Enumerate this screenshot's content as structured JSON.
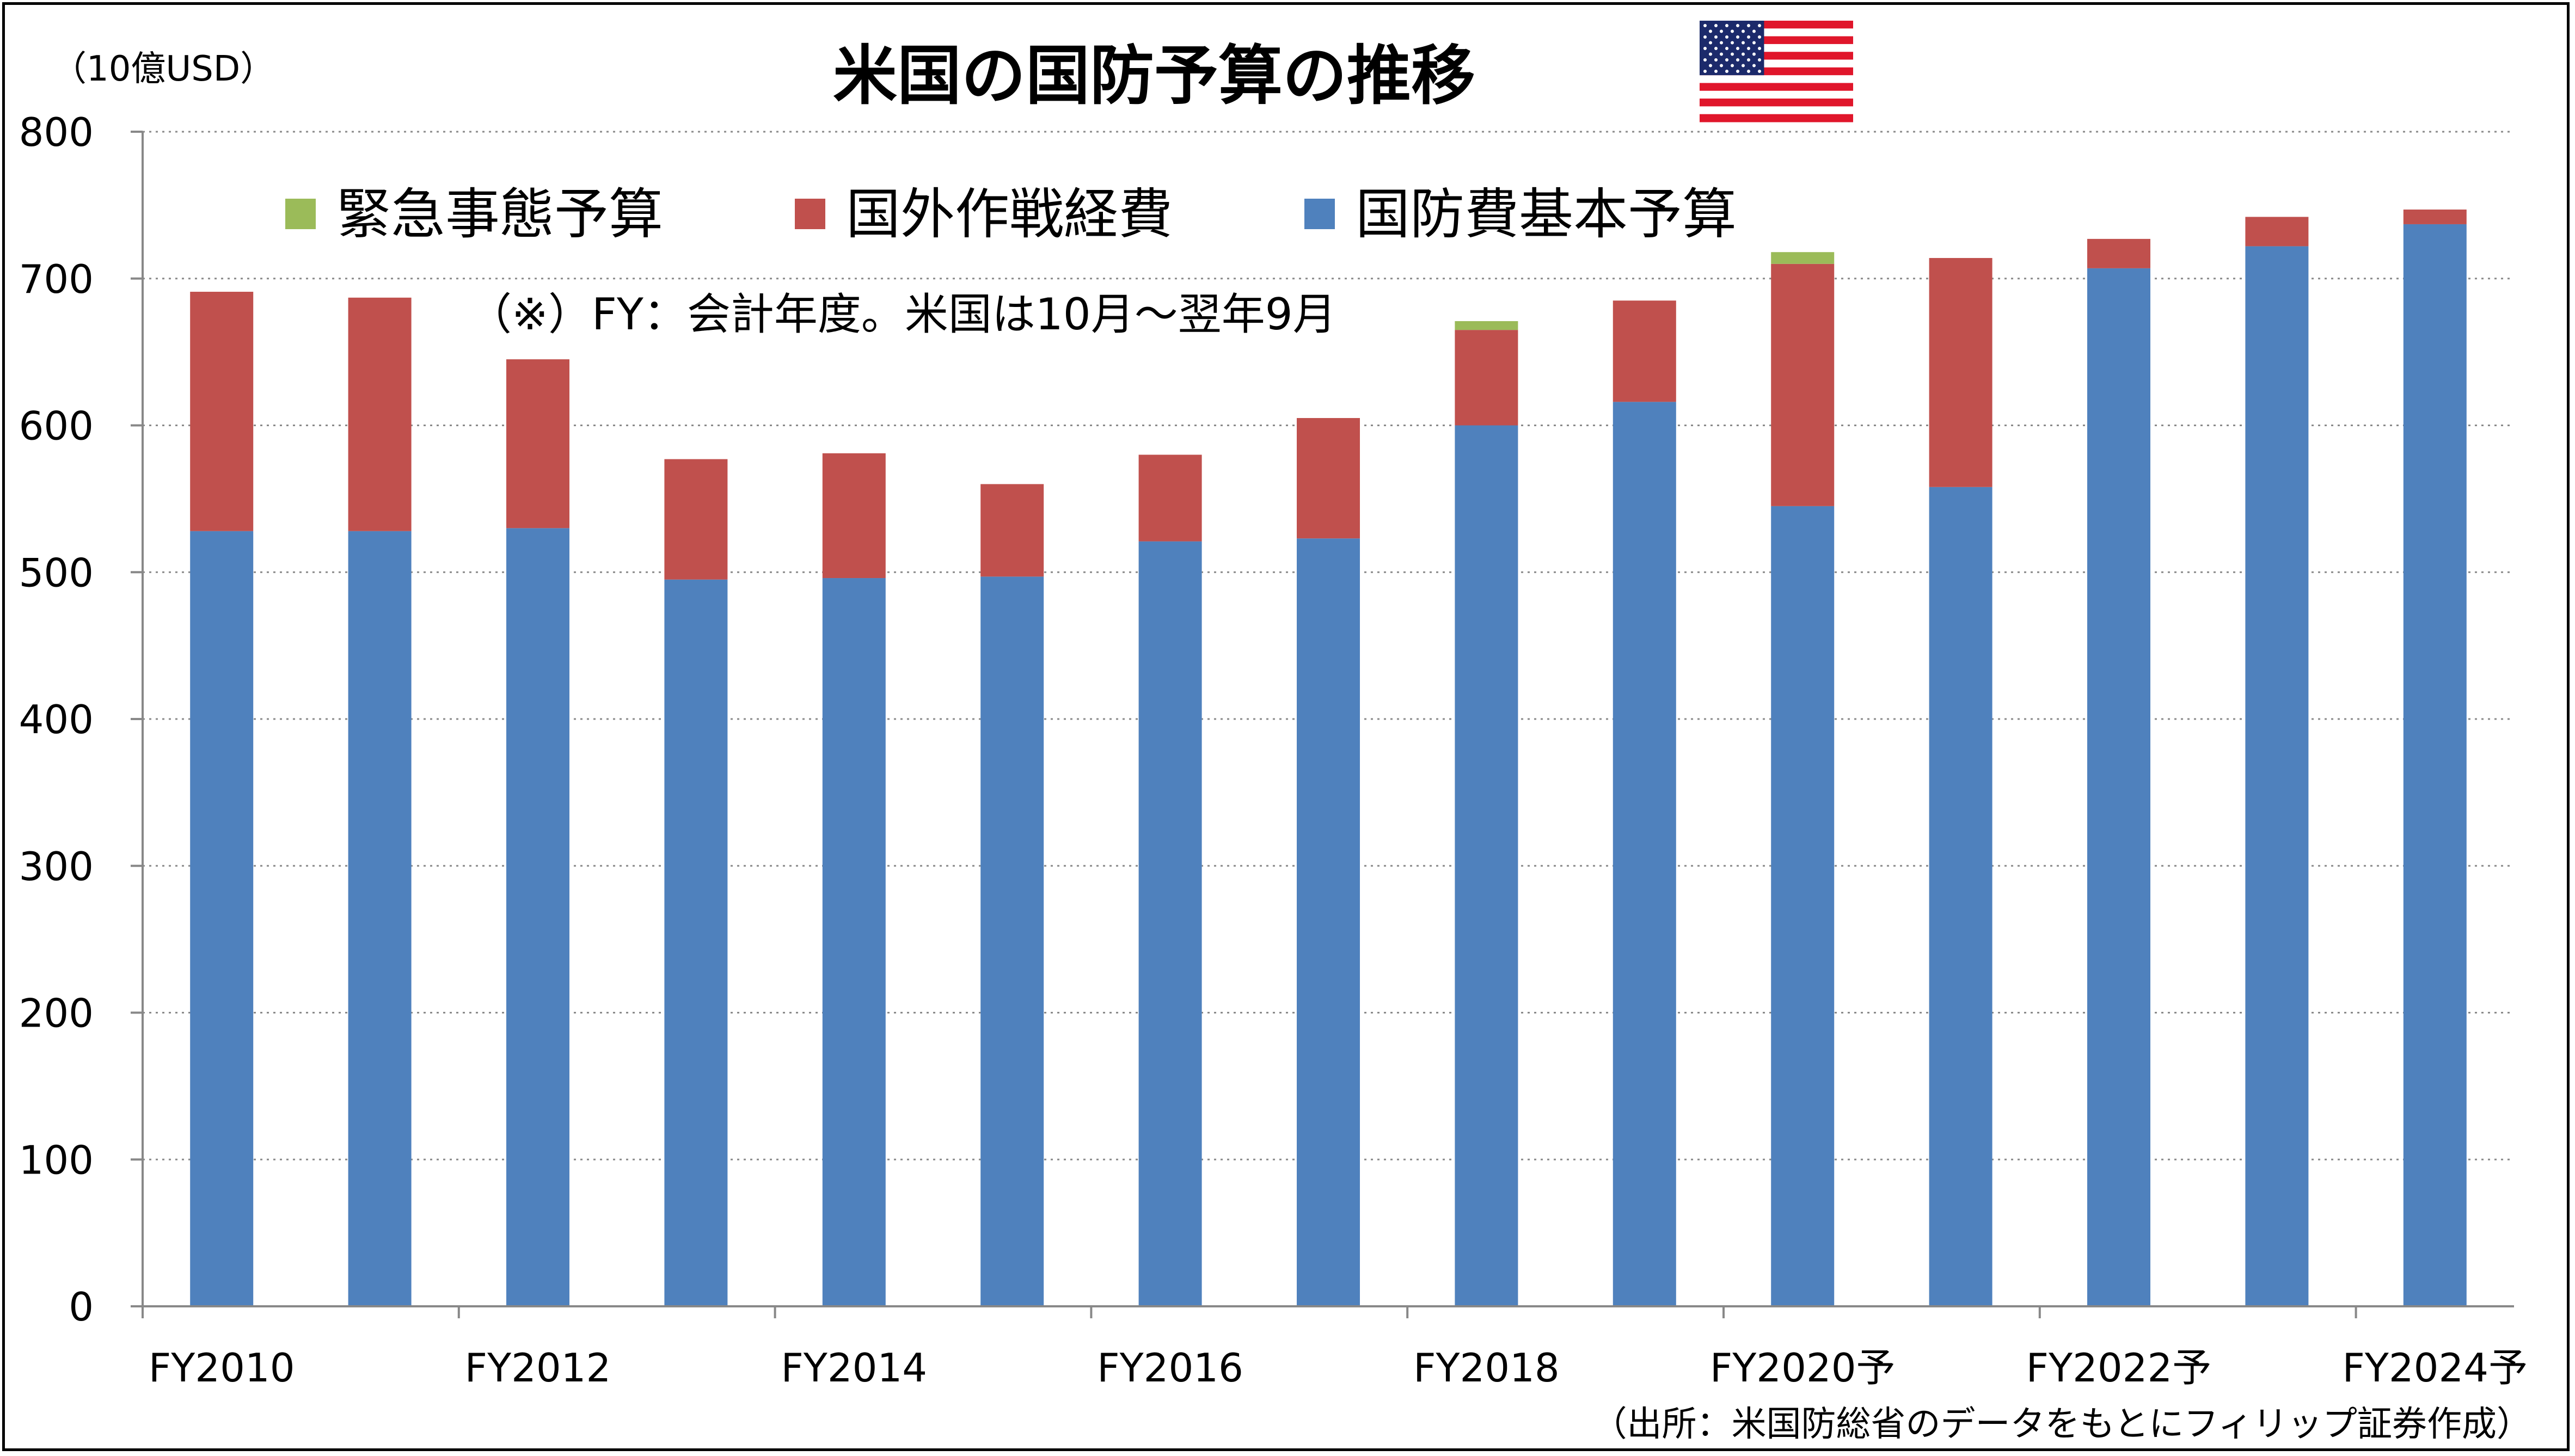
{
  "chart_data": {
    "type": "bar",
    "stacked": true,
    "title": "米国の国防予算の推移",
    "unit_label": "（10億USD）",
    "note": "（※）FY：会計年度。米国は10月～翌年9月",
    "source": "（出所：米国防総省のデータをもとにフィリップ証券作成）",
    "ylim": [
      0,
      800
    ],
    "yticks": [
      0,
      100,
      200,
      300,
      400,
      500,
      600,
      700,
      800
    ],
    "grid": true,
    "legend_position": "top",
    "categories": [
      "FY2010",
      "FY2011",
      "FY2012",
      "FY2013",
      "FY2014",
      "FY2015",
      "FY2016",
      "FY2017",
      "FY2018",
      "FY2019",
      "FY2020予",
      "FY2021予",
      "FY2022予",
      "FY2023予",
      "FY2024予"
    ],
    "category_labels_shown": [
      "FY2010",
      "",
      "FY2012",
      "",
      "FY2014",
      "",
      "FY2016",
      "",
      "FY2018",
      "",
      "FY2020予",
      "",
      "FY2022予",
      "",
      "FY2024予"
    ],
    "series": [
      {
        "name": "国防費基本予算",
        "color": "#4F81BD",
        "values": [
          528,
          528,
          530,
          495,
          496,
          497,
          521,
          523,
          600,
          616,
          545,
          558,
          707,
          722,
          737
        ]
      },
      {
        "name": "国外作戦経費",
        "color": "#C0504D",
        "values": [
          163,
          159,
          115,
          82,
          85,
          63,
          59,
          82,
          65,
          69,
          165,
          156,
          20,
          20,
          10
        ]
      },
      {
        "name": "緊急事態予算",
        "color": "#9BBB59",
        "values": [
          0,
          0,
          0,
          0,
          0,
          0,
          0,
          0,
          6,
          0,
          8,
          0,
          0,
          0,
          0
        ]
      }
    ],
    "legend_order": [
      "緊急事態予算",
      "国外作戦経費",
      "国防費基本予算"
    ]
  },
  "flag_icon": "us-flag-icon"
}
